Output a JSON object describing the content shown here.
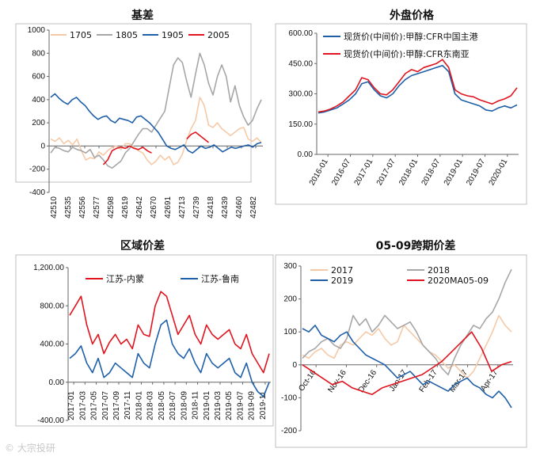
{
  "watermark": "© 大宗投研",
  "chart_data": [
    {
      "type": "line",
      "title": "基差",
      "ylim": [
        -400,
        1000
      ],
      "yticks": [
        -400,
        -200,
        0,
        200,
        400,
        600,
        800,
        1000
      ],
      "xticks": [
        "42510",
        "42535",
        "42556",
        "42577",
        "42598",
        "42619",
        "42642",
        "42670",
        "42691",
        "42713",
        "42739",
        "42418",
        "42439",
        "42460",
        "42482"
      ],
      "legend": "top",
      "series": [
        {
          "name": "1705",
          "color": "#f6c9a6",
          "start": 0.0,
          "end": 1.0,
          "values": [
            60,
            40,
            70,
            20,
            50,
            10,
            60,
            -40,
            -120,
            -100,
            -110,
            -50,
            -80,
            -40,
            -10,
            0,
            -30,
            20,
            20,
            -10,
            -40,
            -60,
            -120,
            -160,
            -130,
            -80,
            -120,
            -90,
            -160,
            -140,
            -70,
            50,
            150,
            220,
            420,
            350,
            180,
            160,
            200,
            150,
            120,
            90,
            120,
            150,
            160,
            60,
            40,
            70,
            30
          ]
        },
        {
          "name": "1805",
          "color": "#a6a6a6",
          "start": 0.0,
          "end": 1.0,
          "values": [
            -60,
            -10,
            -20,
            -40,
            -50,
            -10,
            -30,
            -40,
            -60,
            -30,
            -100,
            -80,
            -120,
            -170,
            -190,
            -160,
            -130,
            -60,
            -20,
            40,
            100,
            150,
            150,
            120,
            180,
            240,
            300,
            500,
            700,
            760,
            720,
            560,
            420,
            620,
            800,
            700,
            540,
            440,
            600,
            700,
            600,
            380,
            520,
            350,
            250,
            180,
            220,
            320,
            400
          ]
        },
        {
          "name": "1905",
          "color": "#1f5fa8",
          "start": 0.0,
          "end": 1.0,
          "values": [
            420,
            450,
            410,
            380,
            360,
            400,
            420,
            380,
            350,
            300,
            260,
            230,
            250,
            260,
            220,
            200,
            240,
            230,
            220,
            200,
            250,
            260,
            230,
            200,
            160,
            120,
            60,
            0,
            -20,
            -30,
            -10,
            10,
            -40,
            -60,
            -30,
            0,
            -20,
            -10,
            10,
            -20,
            -50,
            -30,
            -10,
            -20,
            -10,
            0,
            10,
            -10,
            20,
            30
          ]
        },
        {
          "name": "2005",
          "color": "#e0141e",
          "start": 0.0,
          "end": 1.0,
          "values": [
            null,
            null,
            null,
            null,
            null,
            null,
            null,
            null,
            null,
            null,
            null,
            null,
            -160,
            -120,
            -40,
            -20,
            -10,
            -20,
            0,
            -20,
            -30,
            -10,
            -40,
            -60,
            null,
            null,
            null,
            null,
            null,
            null,
            null,
            60,
            100,
            120,
            90,
            60,
            30,
            null,
            null,
            null,
            null,
            null,
            null,
            null,
            null,
            null,
            null,
            null,
            null
          ]
        }
      ]
    },
    {
      "type": "line",
      "title": "外盘价格",
      "ylim": [
        0,
        600
      ],
      "yticks": [
        "0.00",
        "150.00",
        "300.00",
        "450.00",
        "600.00"
      ],
      "xticks": [
        "2016-01",
        "2016-07",
        "2017-01",
        "2017-07",
        "2018-01",
        "2018-07",
        "2019-01",
        "2019-07",
        "2020-01"
      ],
      "legend": "top-left",
      "series": [
        {
          "name": "现货价(中间价):甲醇:CFR中国主港",
          "color": "#1f5fa8",
          "values": [
            205,
            210,
            220,
            230,
            250,
            270,
            300,
            350,
            360,
            320,
            290,
            280,
            300,
            340,
            370,
            390,
            400,
            410,
            420,
            430,
            440,
            410,
            300,
            270,
            260,
            250,
            240,
            220,
            215,
            230,
            240,
            230,
            245
          ]
        },
        {
          "name": "现货价(中间价):甲醇:CFR东南亚",
          "color": "#e0141e",
          "values": [
            210,
            215,
            225,
            240,
            260,
            290,
            320,
            380,
            370,
            330,
            300,
            295,
            320,
            360,
            400,
            420,
            410,
            430,
            440,
            450,
            470,
            430,
            320,
            300,
            290,
            285,
            270,
            260,
            250,
            265,
            275,
            290,
            330
          ]
        }
      ]
    },
    {
      "type": "line",
      "title": "区域价差",
      "ylim": [
        -400,
        1200
      ],
      "yticks": [
        "-400.00",
        "0.00",
        "400.00",
        "800.00",
        "1,200.00"
      ],
      "xticks": [
        "2017-01",
        "2017-03",
        "2017-05",
        "2017-07",
        "2017-09",
        "2017-11",
        "2018-01",
        "2018-03",
        "2018-05",
        "2018-07",
        "2018-09",
        "2018-11",
        "2019-01",
        "2019-03",
        "2019-05",
        "2019-07",
        "2019-09",
        "2019-11"
      ],
      "legend": "top",
      "series": [
        {
          "name": "江苏-内蒙",
          "color": "#e0141e",
          "values": [
            700,
            800,
            900,
            600,
            400,
            500,
            300,
            420,
            500,
            400,
            450,
            350,
            600,
            500,
            480,
            800,
            950,
            900,
            700,
            500,
            600,
            700,
            500,
            400,
            600,
            500,
            450,
            500,
            550,
            400,
            350,
            500,
            300,
            200,
            100,
            300
          ]
        },
        {
          "name": "江苏-鲁南",
          "color": "#1f5fa8",
          "values": [
            250,
            300,
            380,
            200,
            100,
            250,
            50,
            100,
            200,
            150,
            100,
            50,
            300,
            200,
            150,
            400,
            600,
            650,
            400,
            300,
            250,
            350,
            200,
            100,
            300,
            200,
            150,
            200,
            250,
            100,
            50,
            200,
            0,
            -100,
            -150,
            0
          ]
        }
      ]
    },
    {
      "type": "line",
      "title": "05-09跨期价差",
      "ylim": [
        -200,
        300
      ],
      "yticks": [
        -200,
        -100,
        0,
        100,
        200,
        300
      ],
      "xticks": [
        "Oct-16",
        "Nov-16",
        "Dec-16",
        "Jan-17",
        "Feb-17",
        "Mar-17",
        "Apr-17"
      ],
      "legend": "top",
      "series": [
        {
          "name": "2017",
          "color": "#f6c9a6",
          "values": [
            30,
            20,
            40,
            50,
            30,
            20,
            60,
            70,
            60,
            80,
            100,
            90,
            110,
            80,
            60,
            70,
            120,
            100,
            80,
            60,
            40,
            30,
            10,
            -10,
            0,
            -20,
            -40,
            -20,
            20,
            60,
            100,
            150,
            120,
            100
          ]
        },
        {
          "name": "2018",
          "color": "#a6a6a6",
          "values": [
            20,
            40,
            50,
            70,
            80,
            60,
            50,
            80,
            150,
            120,
            140,
            100,
            120,
            150,
            130,
            110,
            120,
            130,
            100,
            60,
            40,
            20,
            -10,
            -30,
            20,
            60,
            90,
            120,
            110,
            140,
            160,
            200,
            250,
            290
          ]
        },
        {
          "name": "2019",
          "color": "#1f5fa8",
          "values": [
            110,
            100,
            120,
            90,
            80,
            70,
            90,
            100,
            70,
            50,
            30,
            20,
            10,
            0,
            -20,
            -40,
            -30,
            -20,
            -40,
            -60,
            -50,
            -60,
            -70,
            -80,
            -60,
            -50,
            -40,
            -60,
            -70,
            -90,
            -100,
            -80,
            -100,
            -130
          ]
        },
        {
          "name": "2020MA05-09",
          "color": "#e0141e",
          "values": [
            0,
            -20,
            -40,
            -60,
            -50,
            -70,
            -80,
            -90,
            -70,
            -60,
            -50,
            -40,
            -30,
            -10,
            10,
            40,
            70,
            100,
            50,
            -20,
            0,
            10
          ]
        }
      ]
    }
  ]
}
